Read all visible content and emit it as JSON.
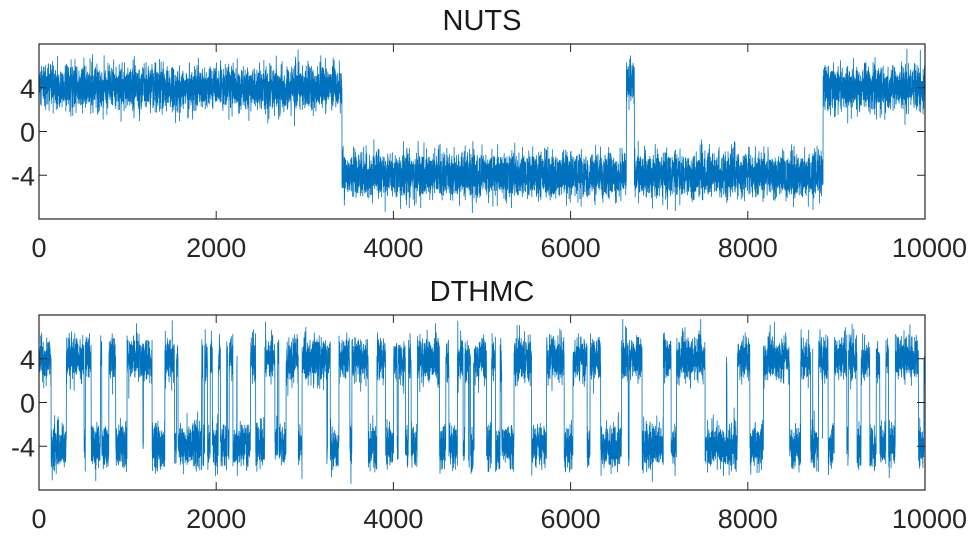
{
  "chart_data": [
    {
      "type": "line",
      "title": "NUTS",
      "xlabel": "",
      "ylabel": "",
      "xlim": [
        0,
        10000
      ],
      "ylim": [
        -8,
        8
      ],
      "xticks": [
        0,
        2000,
        4000,
        6000,
        8000,
        10000
      ],
      "xtick_labels": [
        "0",
        "2000",
        "4000",
        "6000",
        "8000",
        "10000"
      ],
      "yticks": [
        4,
        0,
        -4
      ],
      "ytick_labels": [
        "4",
        "0",
        "-4"
      ],
      "grid": false,
      "series": [
        {
          "color": "#0072BD",
          "n_samples": 10000,
          "regimes": [
            {
              "x_start": 0,
              "x_end": 3420,
              "mean": 4.0
            },
            {
              "x_start": 3420,
              "x_end": 6630,
              "mean": -4.0
            },
            {
              "x_start": 6630,
              "x_end": 6720,
              "mean": 4.5
            },
            {
              "x_start": 6720,
              "x_end": 8850,
              "mean": -4.0
            },
            {
              "x_start": 8850,
              "x_end": 10000,
              "mean": 4.0
            }
          ],
          "noise_sd": 1.0
        }
      ]
    },
    {
      "type": "line",
      "title": "DTHMC",
      "xlabel": "",
      "ylabel": "",
      "xlim": [
        0,
        10000
      ],
      "ylim": [
        -8,
        8
      ],
      "xticks": [
        0,
        2000,
        4000,
        6000,
        8000,
        10000
      ],
      "xtick_labels": [
        "0",
        "2000",
        "4000",
        "6000",
        "8000",
        "10000"
      ],
      "yticks": [
        4,
        0,
        -4
      ],
      "ytick_labels": [
        "4",
        "0",
        "-4"
      ],
      "grid": false,
      "series": [
        {
          "color": "#0072BD",
          "n_samples": 10000,
          "modes": [
            4.0,
            -4.0
          ],
          "switching": "frequent",
          "noise_sd": 1.0
        }
      ]
    }
  ]
}
